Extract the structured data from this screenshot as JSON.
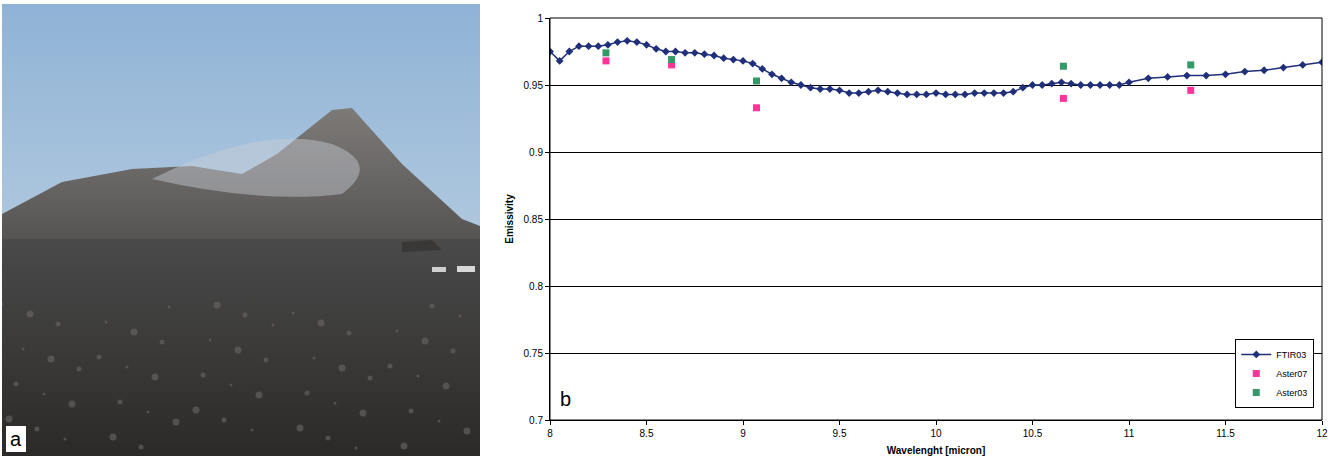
{
  "photo_panel": {
    "label": "a"
  },
  "chart_data": {
    "type": "line",
    "annotations": [
      {
        "text": "b"
      }
    ],
    "x_label": "Wavelenght [micron]",
    "y_label": "Emissivity",
    "xlim": [
      8,
      12
    ],
    "xticks": [
      8,
      8.5,
      9,
      9.5,
      10,
      10.5,
      11,
      11.5,
      12
    ],
    "ylim": [
      0.7,
      1
    ],
    "yticks": [
      0.7,
      0.75,
      0.8,
      0.85,
      0.9,
      0.95,
      1
    ],
    "grid": true,
    "legend": "bottom right",
    "series": [
      {
        "name": "FTIR03",
        "type": "line",
        "color": "#1f2f7a",
        "marker": "diamond",
        "line_style": "solid",
        "x": [
          8.0,
          8.05,
          8.1,
          8.15,
          8.2,
          8.25,
          8.3,
          8.35,
          8.4,
          8.45,
          8.5,
          8.55,
          8.6,
          8.65,
          8.7,
          8.75,
          8.8,
          8.85,
          8.9,
          8.95,
          9.0,
          9.05,
          9.1,
          9.15,
          9.2,
          9.25,
          9.3,
          9.35,
          9.4,
          9.45,
          9.5,
          9.55,
          9.6,
          9.65,
          9.7,
          9.75,
          9.8,
          9.85,
          9.9,
          9.95,
          10.0,
          10.05,
          10.1,
          10.15,
          10.2,
          10.25,
          10.3,
          10.35,
          10.4,
          10.45,
          10.5,
          10.55,
          10.6,
          10.65,
          10.7,
          10.75,
          10.8,
          10.85,
          10.9,
          10.95,
          11.0,
          11.1,
          11.2,
          11.3,
          11.4,
          11.5,
          11.6,
          11.7,
          11.8,
          11.9,
          12.0
        ],
        "values": [
          0.975,
          0.968,
          0.975,
          0.979,
          0.979,
          0.979,
          0.98,
          0.982,
          0.983,
          0.982,
          0.98,
          0.977,
          0.975,
          0.975,
          0.974,
          0.974,
          0.973,
          0.972,
          0.97,
          0.969,
          0.968,
          0.966,
          0.962,
          0.958,
          0.955,
          0.952,
          0.95,
          0.948,
          0.947,
          0.947,
          0.946,
          0.944,
          0.944,
          0.945,
          0.946,
          0.945,
          0.944,
          0.943,
          0.943,
          0.943,
          0.944,
          0.943,
          0.943,
          0.943,
          0.944,
          0.944,
          0.944,
          0.944,
          0.945,
          0.948,
          0.95,
          0.95,
          0.951,
          0.952,
          0.951,
          0.95,
          0.95,
          0.95,
          0.95,
          0.95,
          0.952,
          0.955,
          0.956,
          0.957,
          0.957,
          0.958,
          0.96,
          0.961,
          0.963,
          0.965,
          0.967
        ]
      },
      {
        "name": "Aster07",
        "type": "scatter",
        "color": "#ff3399",
        "marker": "square",
        "x": [
          8.29,
          8.63,
          9.07,
          10.66,
          11.32
        ],
        "values": [
          0.968,
          0.965,
          0.933,
          0.94,
          0.946
        ]
      },
      {
        "name": "Aster03",
        "type": "scatter",
        "color": "#339966",
        "marker": "square",
        "x": [
          8.29,
          8.63,
          9.07,
          10.66,
          11.32
        ],
        "values": [
          0.974,
          0.969,
          0.953,
          0.964,
          0.965
        ]
      }
    ]
  }
}
